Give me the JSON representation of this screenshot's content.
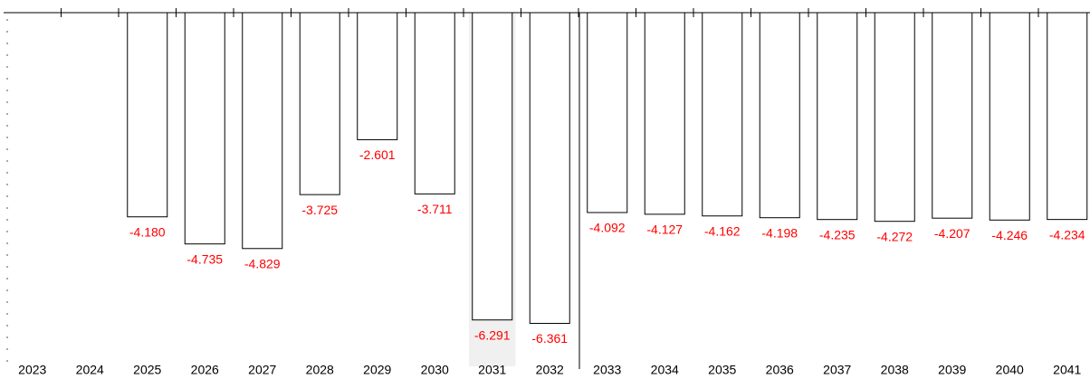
{
  "chart_data": {
    "type": "bar",
    "categories": [
      "2023",
      "2024",
      "2025",
      "2026",
      "2027",
      "2028",
      "2029",
      "2030",
      "2031",
      "2032",
      "2033",
      "2034",
      "2035",
      "2036",
      "2037",
      "2038",
      "2039",
      "2040",
      "2041"
    ],
    "values": [
      null,
      null,
      -4.18,
      -4.735,
      -4.829,
      -3.725,
      -2.601,
      -3.711,
      -6.291,
      -6.361,
      -4.092,
      -4.127,
      -4.162,
      -4.198,
      -4.235,
      -4.272,
      -4.207,
      -4.246,
      -4.234
    ],
    "value_labels": [
      null,
      null,
      "-4.180",
      "-4.735",
      "-4.829",
      "-3.725",
      "-2.601",
      "-3.711",
      "-6.291",
      "-6.361",
      "-4.092",
      "-4.127",
      "-4.162",
      "-4.198",
      "-4.235",
      "-4.272",
      "-4.207",
      "-4.246",
      "-4.234"
    ],
    "color": "#ffffff",
    "label_color": "#ff0000",
    "highlight": "2031",
    "ylim": [
      -7.2,
      0
    ]
  }
}
